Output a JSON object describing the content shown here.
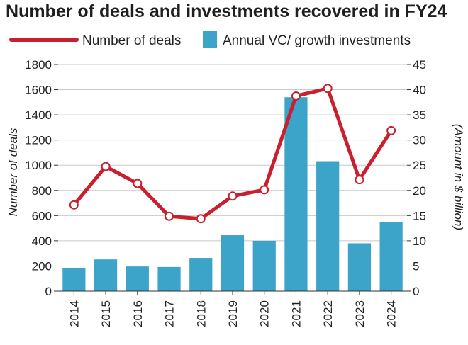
{
  "chart_data": {
    "type": "bar",
    "title": "Number of deals and investments recovered in FY24",
    "categories": [
      "2014",
      "2015",
      "2016",
      "2017",
      "2018",
      "2019",
      "2020",
      "2021",
      "2022",
      "2023",
      "2024"
    ],
    "series": [
      {
        "name": "Number of deals",
        "type": "line",
        "axis": "left",
        "values": [
          685,
          990,
          855,
          595,
          575,
          755,
          805,
          1550,
          1610,
          885,
          1275
        ],
        "color": "#c8202f"
      },
      {
        "name": "Annual VC/ growth investments",
        "type": "bar",
        "axis": "right",
        "values": [
          4.6,
          6.3,
          4.9,
          4.8,
          6.6,
          11.1,
          10,
          38.5,
          25.8,
          9.5,
          13.7
        ],
        "color": "#3ba4c8"
      }
    ],
    "ylabel": "Number of deals",
    "y2label": "(Amount in $ billion)",
    "ylim": [
      0,
      1800
    ],
    "y2lim": [
      0,
      45
    ],
    "yticks": [
      "0",
      "200",
      "400",
      "600",
      "800",
      "1000",
      "1200",
      "1400",
      "1600",
      "1800"
    ],
    "y2ticks": [
      "0",
      "5",
      "10",
      "15",
      "20",
      "25",
      "30",
      "35",
      "40",
      "45"
    ],
    "grid": true,
    "legend": "top"
  }
}
